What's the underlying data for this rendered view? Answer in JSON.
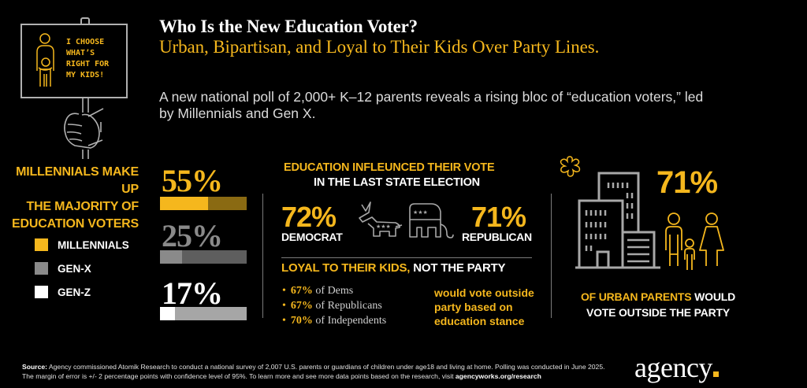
{
  "header": {
    "title": "Who Is the New Education Voter?",
    "subtitle": "Urban, Bipartisan, and Loyal to Their Kids Over Party Lines.",
    "intro": "A new national poll of 2,000+ K–12 parents reveals a rising bloc of “education voters,” led by Millennials and Gen X."
  },
  "sign": {
    "text_lines": [
      "I CHOOSE",
      "WHAT’S",
      "RIGHT FOR",
      "MY KIDS!"
    ]
  },
  "colors": {
    "accent": "#f5b71d",
    "accent_dark": "#8a6a12",
    "grey": "#8a8a8a",
    "grey_dark": "#5e5e5e",
    "light_grey": "#a6a6a6",
    "white": "#ffffff",
    "background": "#000000"
  },
  "generations": {
    "heading_lines": [
      "MILLENNIALS MAKE UP",
      "THE MAJORITY OF",
      "EDUCATION VOTERS"
    ],
    "legend": [
      {
        "label": "MILLENNIALS",
        "color": "#f5b71d"
      },
      {
        "label": "GEN-X",
        "color": "#8a8a8a"
      },
      {
        "label": "GEN-Z",
        "color": "#ffffff"
      }
    ],
    "stats": [
      {
        "name": "Millennials",
        "label": "55%",
        "value": 55,
        "color": "#f5b71d",
        "rest_color": "#8a6a12"
      },
      {
        "name": "Gen-X",
        "label": "25%",
        "value": 25,
        "color": "#8a8a8a",
        "rest_color": "#5e5e5e"
      },
      {
        "name": "Gen-Z",
        "label": "17%",
        "value": 17,
        "color": "#ffffff",
        "rest_color": "#a6a6a6"
      }
    ]
  },
  "election": {
    "heading_line1": "EDUCATION INFLEUNCED THEIR VOTE",
    "heading_line2": "IN THE LAST STATE ELECTION",
    "democrat": {
      "pct": "72%",
      "label": "DEMOCRAT",
      "icon": "donkey-icon"
    },
    "republican": {
      "pct": "71%",
      "label": "REPUBLICAN",
      "icon": "elephant-icon"
    }
  },
  "loyal": {
    "heading_accent": "LOYAL TO THEIR KIDS,",
    "heading_rest": " NOT THE PARTY",
    "items": [
      {
        "pct": "67%",
        "text": " of Dems"
      },
      {
        "pct": "67%",
        "text": " of Republicans"
      },
      {
        "pct": "70%",
        "text": " of Independents"
      }
    ],
    "note": "would vote outside party based on education stance"
  },
  "urban": {
    "pct": "71%",
    "caption_accent": "OF URBAN PARENTS",
    "caption_rest1": " WOULD",
    "caption_rest2": "VOTE OUTSIDE THE PARTY",
    "icons": [
      "sparkle-icon",
      "city-buildings-icon",
      "family-icon"
    ]
  },
  "footer": {
    "source_label": "Source:",
    "source_text": "  Agency commissioned Atomik Research to conduct a national survey of 2,007 U.S. parents or guardians of children under age18 and living at home. Polling was conducted in June 2025.",
    "margin_text": "The margin of error is +/- 2 percentage points with confidence level of 95%. To learn more and see more data points based on the research, visit ",
    "link_text": "agencyworks.org/research",
    "logo": "agency"
  }
}
